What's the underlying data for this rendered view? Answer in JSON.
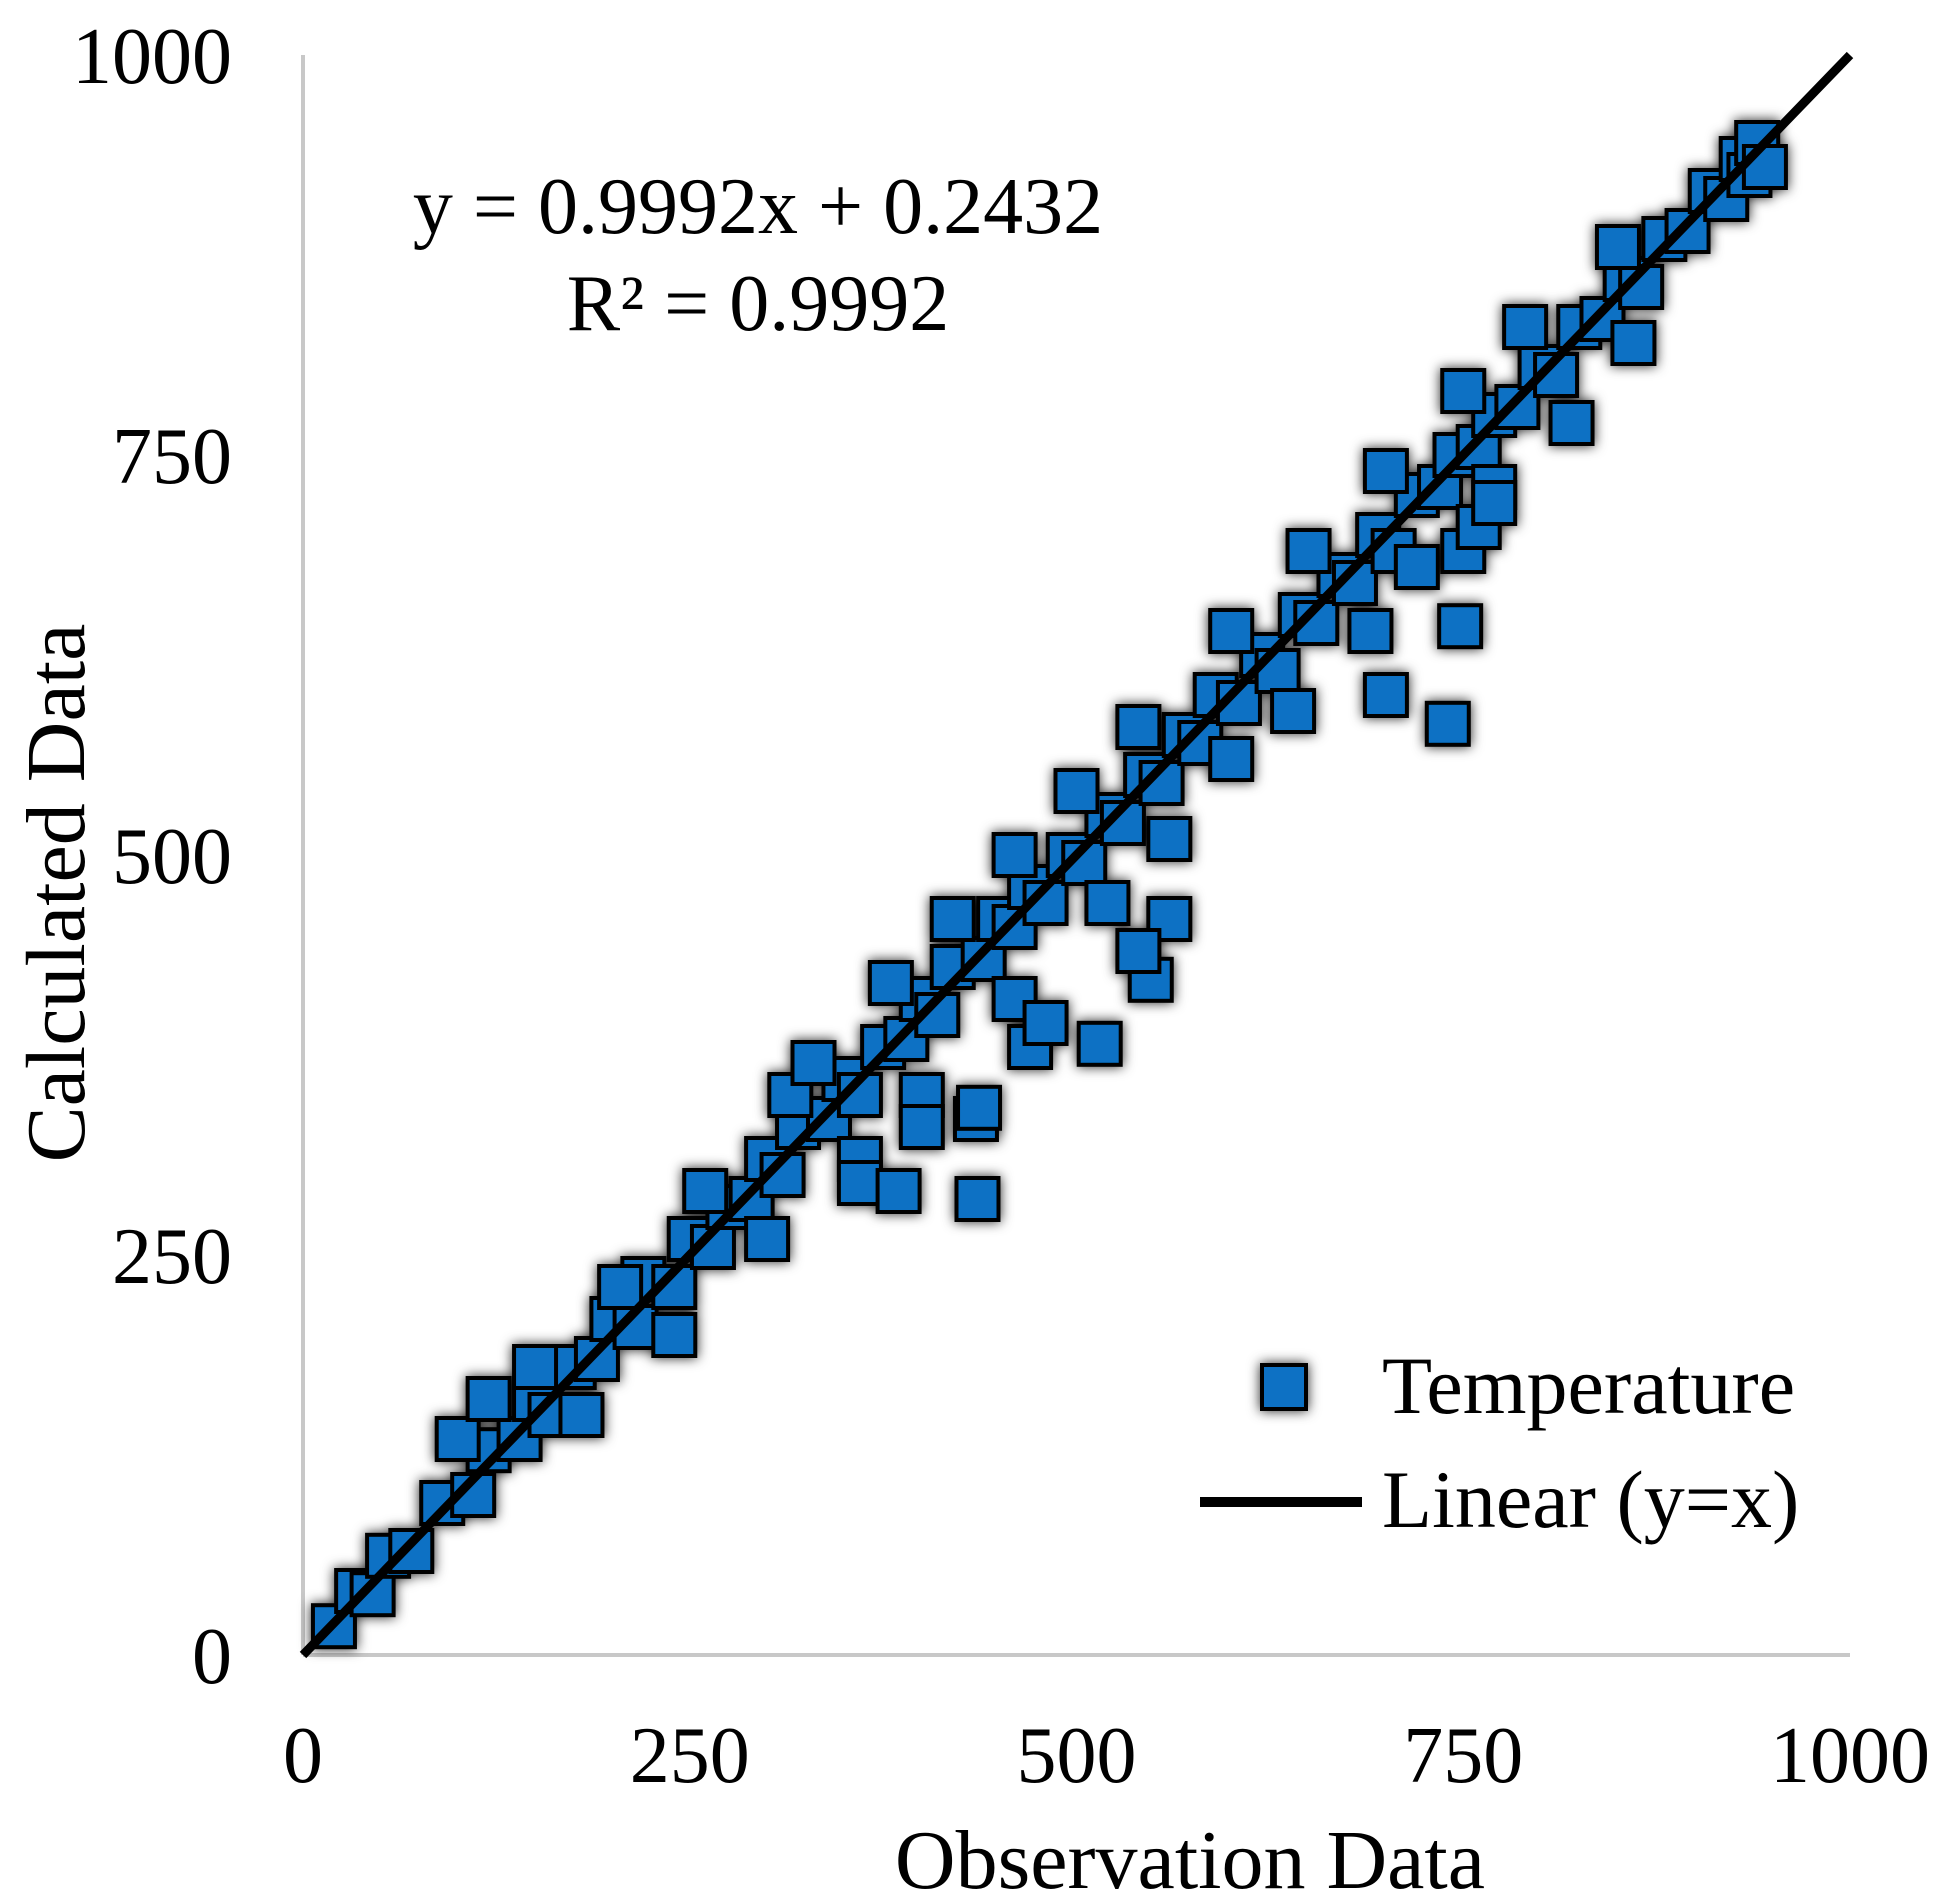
{
  "chart_data": {
    "type": "scatter",
    "xlabel": "Observation Data",
    "ylabel": "Calculated Data",
    "xlim": [
      0,
      1000
    ],
    "ylim": [
      0,
      1000
    ],
    "x_ticks": [
      "0",
      "250",
      "500",
      "750",
      "1000"
    ],
    "y_ticks": [
      "0",
      "250",
      "500",
      "750",
      "1000"
    ],
    "grid": false,
    "equation": "y = 0.9992x + 0.2432",
    "r_squared": "R² = 0.9992",
    "legend": {
      "position": "bottom-right",
      "entries": [
        {
          "label": "Temperature",
          "marker": "square"
        },
        {
          "label": "Linear (y=x)",
          "marker": "line"
        }
      ]
    },
    "series": [
      {
        "name": "Temperature",
        "color": "#0a71c4",
        "outline": "#000000",
        "points": [
          [
            20,
            18
          ],
          [
            35,
            40
          ],
          [
            45,
            38
          ],
          [
            55,
            62
          ],
          [
            70,
            65
          ],
          [
            90,
            95
          ],
          [
            110,
            100
          ],
          [
            120,
            128
          ],
          [
            140,
            135
          ],
          [
            150,
            160
          ],
          [
            160,
            150
          ],
          [
            175,
            180
          ],
          [
            190,
            185
          ],
          [
            200,
            210
          ],
          [
            215,
            205
          ],
          [
            220,
            235
          ],
          [
            240,
            230
          ],
          [
            250,
            260
          ],
          [
            265,
            255
          ],
          [
            275,
            280
          ],
          [
            290,
            285
          ],
          [
            300,
            310
          ],
          [
            310,
            300
          ],
          [
            320,
            330
          ],
          [
            340,
            335
          ],
          [
            350,
            360
          ],
          [
            360,
            350
          ],
          [
            375,
            380
          ],
          [
            390,
            385
          ],
          [
            400,
            410
          ],
          [
            410,
            400
          ],
          [
            420,
            430
          ],
          [
            440,
            435
          ],
          [
            450,
            460
          ],
          [
            460,
            455
          ],
          [
            470,
            480
          ],
          [
            480,
            470
          ],
          [
            495,
            500
          ],
          [
            505,
            495
          ],
          [
            520,
            525
          ],
          [
            530,
            520
          ],
          [
            545,
            550
          ],
          [
            555,
            545
          ],
          [
            570,
            575
          ],
          [
            580,
            570
          ],
          [
            590,
            600
          ],
          [
            605,
            595
          ],
          [
            620,
            625
          ],
          [
            630,
            615
          ],
          [
            645,
            650
          ],
          [
            655,
            645
          ],
          [
            670,
            675
          ],
          [
            680,
            670
          ],
          [
            695,
            700
          ],
          [
            705,
            690
          ],
          [
            720,
            725
          ],
          [
            735,
            730
          ],
          [
            745,
            750
          ],
          [
            760,
            755
          ],
          [
            770,
            775
          ],
          [
            785,
            780
          ],
          [
            800,
            805
          ],
          [
            810,
            800
          ],
          [
            825,
            830
          ],
          [
            840,
            835
          ],
          [
            855,
            860
          ],
          [
            865,
            855
          ],
          [
            880,
            885
          ],
          [
            895,
            890
          ],
          [
            910,
            915
          ],
          [
            920,
            910
          ],
          [
            930,
            935
          ],
          [
            935,
            925
          ],
          [
            940,
            945
          ],
          [
            945,
            930
          ],
          [
            205,
            230
          ],
          [
            260,
            290
          ],
          [
            315,
            350
          ],
          [
            330,
            370
          ],
          [
            380,
            420
          ],
          [
            420,
            460
          ],
          [
            460,
            500
          ],
          [
            500,
            540
          ],
          [
            540,
            580
          ],
          [
            600,
            640
          ],
          [
            650,
            690
          ],
          [
            700,
            740
          ],
          [
            750,
            790
          ],
          [
            790,
            830
          ],
          [
            850,
            880
          ],
          [
            150,
            180
          ],
          [
            100,
            135
          ],
          [
            120,
            160
          ],
          [
            180,
            150
          ],
          [
            240,
            200
          ],
          [
            300,
            260
          ],
          [
            360,
            310
          ],
          [
            400,
            350
          ],
          [
            460,
            410
          ],
          [
            520,
            470
          ],
          [
            560,
            510
          ],
          [
            600,
            560
          ],
          [
            640,
            590
          ],
          [
            690,
            640
          ],
          [
            720,
            680
          ],
          [
            770,
            730
          ],
          [
            820,
            770
          ],
          [
            860,
            820
          ],
          [
            360,
            295
          ],
          [
            385,
            290
          ],
          [
            435,
            335
          ],
          [
            437,
            342
          ],
          [
            436,
            285
          ],
          [
            515,
            382
          ],
          [
            548,
            422
          ],
          [
            740,
            582
          ],
          [
            748,
            643
          ],
          [
            750,
            690
          ],
          [
            760,
            705
          ],
          [
            770,
            720
          ],
          [
            560,
            460
          ],
          [
            540,
            440
          ],
          [
            470,
            380
          ],
          [
            480,
            395
          ],
          [
            400,
            330
          ],
          [
            700,
            600
          ]
        ]
      }
    ],
    "reference_line": {
      "name": "Linear (y=x)",
      "from": [
        0,
        0
      ],
      "to": [
        1000,
        1000
      ],
      "color": "#000000"
    }
  }
}
